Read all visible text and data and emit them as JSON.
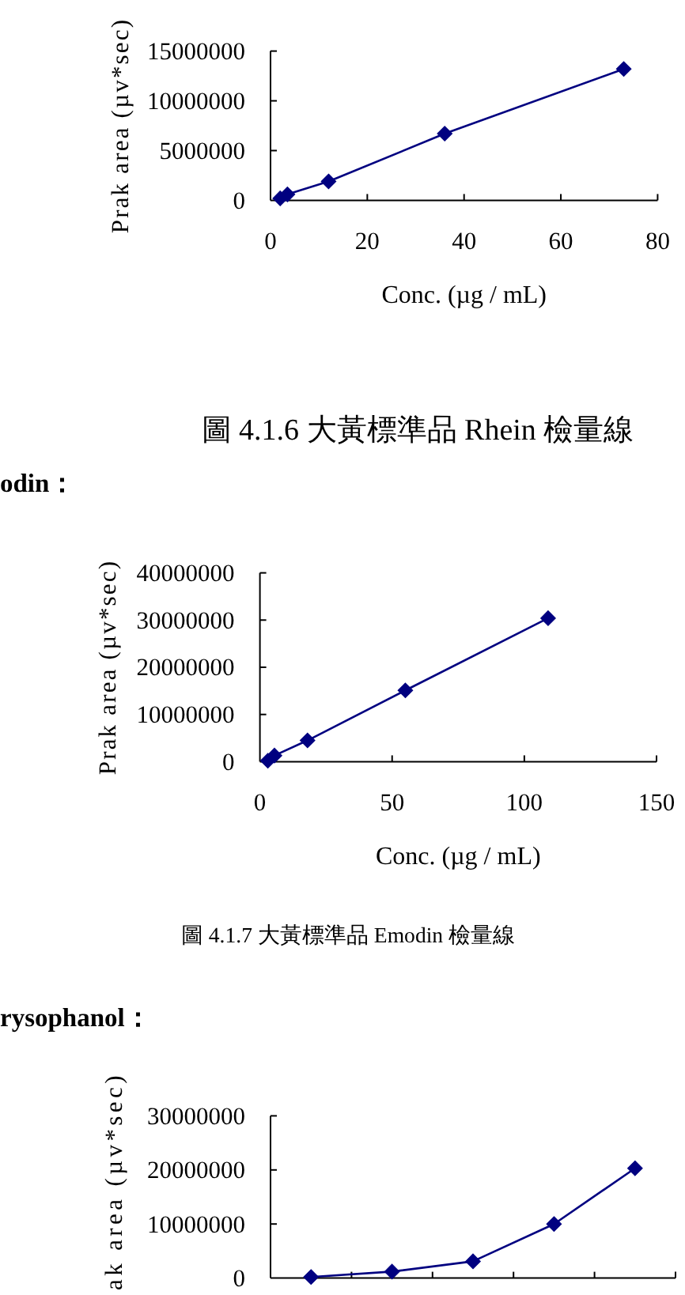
{
  "chart_data": [
    {
      "type": "line",
      "xlabel": "Conc. (µg / mL)",
      "ylabel": "Prak area (µv*sec)",
      "x": [
        2,
        3.5,
        12,
        36,
        73
      ],
      "values": [
        200000,
        600000,
        1900000,
        6700000,
        13200000
      ],
      "color": "#000080",
      "marker": "diamond",
      "xlim": [
        0,
        80
      ],
      "xticks": [
        0,
        20,
        40,
        60,
        80
      ],
      "ylim": [
        0,
        15000000
      ],
      "yticks": [
        0,
        5000000,
        10000000,
        15000000
      ],
      "annotations": [
        "圖 4.1.6 大黃標準品 Rhein 檢量線"
      ]
    },
    {
      "type": "line",
      "title": "odin：",
      "xlabel": "Conc. (µg / mL)",
      "ylabel": "Prak area (µv*sec)",
      "x": [
        3,
        5.5,
        18,
        55,
        109
      ],
      "values": [
        200000,
        1300000,
        4500000,
        15100000,
        30400000
      ],
      "color": "#000080",
      "marker": "diamond",
      "xlim": [
        0,
        150
      ],
      "xticks": [
        0,
        50,
        100,
        150
      ],
      "ylim": [
        0,
        40000000
      ],
      "yticks": [
        0,
        10000000,
        20000000,
        30000000,
        40000000
      ],
      "annotations": [
        "圖 4.1.7 大黃標準品 Emodin 檢量線"
      ]
    },
    {
      "type": "line",
      "title": "rysophanol：",
      "ylabel": "ak area (µv*sec)",
      "categories": [
        null,
        null,
        null,
        null,
        null
      ],
      "values": [
        200000,
        1200000,
        3100000,
        10000000,
        20300000
      ],
      "color": "#000080",
      "marker": "diamond",
      "ylim": [
        0,
        30000000
      ],
      "yticks": [
        0,
        10000000,
        20000000,
        30000000
      ]
    }
  ]
}
